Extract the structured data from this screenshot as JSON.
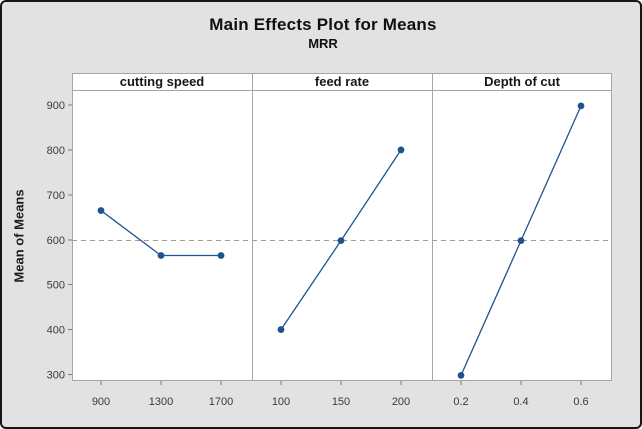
{
  "window": {
    "background": "#e2e2e2",
    "border_color": "#161616"
  },
  "chart_data": {
    "type": "line",
    "title": "Main Effects Plot for Means",
    "subtitle": "MRR",
    "ylabel": "Mean of Means",
    "xlabel": "",
    "ylim": [
      300,
      900
    ],
    "yticks": [
      "300",
      "400",
      "500",
      "600",
      "700",
      "800",
      "900"
    ],
    "grid": false,
    "legend": false,
    "reference_line_value": 598.4,
    "reference_line_style": "dashed",
    "panels": [
      {
        "label": "cutting speed",
        "categories": [
          "900",
          "1300",
          "1700"
        ],
        "values": [
          665,
          565,
          565
        ]
      },
      {
        "label": "feed rate",
        "categories": [
          "100",
          "150",
          "200"
        ],
        "values": [
          400,
          598,
          800
        ]
      },
      {
        "label": "Depth of cut",
        "categories": [
          "0.2",
          "0.4",
          "0.6"
        ],
        "values": [
          298,
          598,
          898
        ]
      }
    ],
    "colors": {
      "series": "#1E548E",
      "reference_line": "#9C9C9C",
      "panel_border": "#A6A6A6",
      "tick_mark": "#7A7A7A",
      "tick_text": "#3A3A3A",
      "plot_background": "#FFFFFF"
    }
  }
}
